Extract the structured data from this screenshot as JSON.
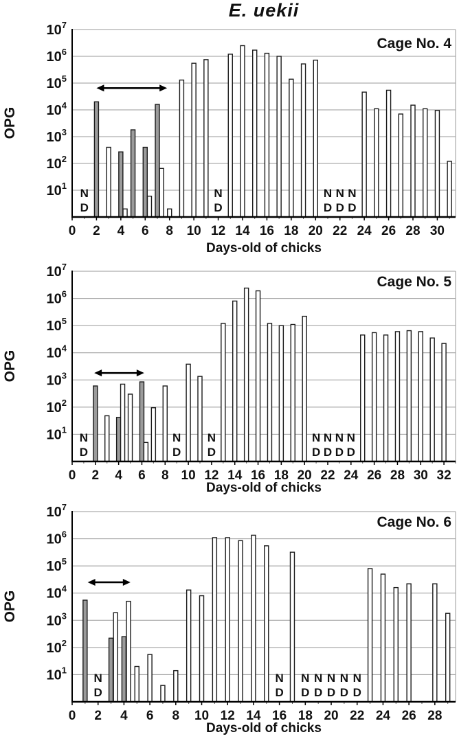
{
  "page": {
    "title": "E. uekii"
  },
  "labels": {
    "nd_line1": "N",
    "nd_line2": "D"
  },
  "colors": {
    "bar_outline": "#1a1a1a",
    "bar_fill": "#ffffff",
    "bar_fill_shaded": "#9b9b9b",
    "grid": "#999999",
    "axis": "#000000",
    "text": "#111111"
  },
  "chart_data": [
    {
      "type": "bar",
      "cage_label": "Cage No. 4",
      "ylabel": "OPG",
      "xlabel": "Days-old of chicks",
      "yscale": "log",
      "ylim": [
        1,
        10000000
      ],
      "ytick_exponents": [
        7,
        6,
        5,
        4,
        3,
        2,
        1
      ],
      "xmax": 31.5,
      "xticks": [
        0,
        2,
        4,
        6,
        8,
        10,
        12,
        14,
        16,
        18,
        20,
        22,
        24,
        26,
        28,
        30
      ],
      "bars": [
        {
          "day": 2,
          "opg": 20000,
          "shaded": true
        },
        {
          "day": 3,
          "opg": 400,
          "shaded": false
        },
        {
          "day": 4,
          "opg": 270,
          "shaded": true
        },
        {
          "day": 4.35,
          "opg": 2,
          "shaded": false
        },
        {
          "day": 5,
          "opg": 1800,
          "shaded": true
        },
        {
          "day": 6,
          "opg": 400,
          "shaded": true
        },
        {
          "day": 6.35,
          "opg": 6,
          "shaded": false
        },
        {
          "day": 7,
          "opg": 16000,
          "shaded": true
        },
        {
          "day": 7.35,
          "opg": 65,
          "shaded": false
        },
        {
          "day": 8,
          "opg": 2,
          "shaded": false
        },
        {
          "day": 9,
          "opg": 130000,
          "shaded": false
        },
        {
          "day": 10,
          "opg": 550000,
          "shaded": false
        },
        {
          "day": 11,
          "opg": 750000,
          "shaded": false
        },
        {
          "day": 13,
          "opg": 1200000,
          "shaded": false
        },
        {
          "day": 14,
          "opg": 2500000,
          "shaded": false
        },
        {
          "day": 15,
          "opg": 1700000,
          "shaded": false
        },
        {
          "day": 16,
          "opg": 1300000,
          "shaded": false
        },
        {
          "day": 17,
          "opg": 1000000,
          "shaded": false
        },
        {
          "day": 18,
          "opg": 140000,
          "shaded": false
        },
        {
          "day": 19,
          "opg": 520000,
          "shaded": false
        },
        {
          "day": 20,
          "opg": 720000,
          "shaded": false
        },
        {
          "day": 24,
          "opg": 46000,
          "shaded": false
        },
        {
          "day": 25,
          "opg": 11000,
          "shaded": false
        },
        {
          "day": 26,
          "opg": 54000,
          "shaded": false
        },
        {
          "day": 27,
          "opg": 7000,
          "shaded": false
        },
        {
          "day": 28,
          "opg": 15000,
          "shaded": false
        },
        {
          "day": 29,
          "opg": 11000,
          "shaded": false
        },
        {
          "day": 30,
          "opg": 9500,
          "shaded": false
        },
        {
          "day": 31,
          "opg": 120,
          "shaded": false
        }
      ],
      "nd_days": [
        1,
        12,
        21,
        22,
        23
      ],
      "arrow": {
        "from_day": 2,
        "to_day": 7.8,
        "at_opg": 65000
      }
    },
    {
      "type": "bar",
      "cage_label": "Cage No. 5",
      "ylabel": "OPG",
      "xlabel": "Days-old of chicks",
      "yscale": "log",
      "ylim": [
        1,
        10000000
      ],
      "ytick_exponents": [
        7,
        6,
        5,
        4,
        3,
        2,
        1
      ],
      "xmax": 33,
      "xticks": [
        0,
        2,
        4,
        6,
        8,
        10,
        12,
        14,
        16,
        18,
        20,
        22,
        24,
        26,
        28,
        30,
        32
      ],
      "bars": [
        {
          "day": 2,
          "opg": 600,
          "shaded": true
        },
        {
          "day": 3,
          "opg": 48,
          "shaded": false
        },
        {
          "day": 4,
          "opg": 42,
          "shaded": true
        },
        {
          "day": 4.35,
          "opg": 700,
          "shaded": false
        },
        {
          "day": 5,
          "opg": 300,
          "shaded": false
        },
        {
          "day": 6,
          "opg": 850,
          "shaded": true
        },
        {
          "day": 6.35,
          "opg": 5,
          "shaded": false
        },
        {
          "day": 7,
          "opg": 95,
          "shaded": false
        },
        {
          "day": 8,
          "opg": 600,
          "shaded": false
        },
        {
          "day": 10,
          "opg": 3800,
          "shaded": false
        },
        {
          "day": 11,
          "opg": 1350,
          "shaded": false
        },
        {
          "day": 13,
          "opg": 120000,
          "shaded": false
        },
        {
          "day": 14,
          "opg": 800000,
          "shaded": false
        },
        {
          "day": 15,
          "opg": 2400000,
          "shaded": false
        },
        {
          "day": 16,
          "opg": 1900000,
          "shaded": false
        },
        {
          "day": 17,
          "opg": 120000,
          "shaded": false
        },
        {
          "day": 18,
          "opg": 100000,
          "shaded": false
        },
        {
          "day": 19,
          "opg": 110000,
          "shaded": false
        },
        {
          "day": 20,
          "opg": 220000,
          "shaded": false
        },
        {
          "day": 25,
          "opg": 45000,
          "shaded": false
        },
        {
          "day": 26,
          "opg": 55000,
          "shaded": false
        },
        {
          "day": 27,
          "opg": 45000,
          "shaded": false
        },
        {
          "day": 28,
          "opg": 60000,
          "shaded": false
        },
        {
          "day": 29,
          "opg": 65000,
          "shaded": false
        },
        {
          "day": 30,
          "opg": 60000,
          "shaded": false
        },
        {
          "day": 31,
          "opg": 35000,
          "shaded": false
        },
        {
          "day": 32,
          "opg": 22000,
          "shaded": false
        }
      ],
      "nd_days": [
        1,
        9,
        12,
        21,
        22,
        23,
        24
      ],
      "arrow": {
        "from_day": 1.9,
        "to_day": 6.2,
        "at_opg": 1800
      }
    },
    {
      "type": "bar",
      "cage_label": "Cage No. 6",
      "ylabel": "OPG",
      "xlabel": "Days-old of chicks",
      "yscale": "log",
      "ylim": [
        1,
        10000000
      ],
      "ytick_exponents": [
        7,
        6,
        5,
        4,
        3,
        2,
        1
      ],
      "xmax": 29.6,
      "xticks": [
        0,
        2,
        4,
        6,
        8,
        10,
        12,
        14,
        16,
        18,
        20,
        22,
        24,
        26,
        28
      ],
      "bars": [
        {
          "day": 1,
          "opg": 5500,
          "shaded": true
        },
        {
          "day": 3,
          "opg": 220,
          "shaded": true
        },
        {
          "day": 3.35,
          "opg": 1900,
          "shaded": false
        },
        {
          "day": 4,
          "opg": 250,
          "shaded": true
        },
        {
          "day": 4.35,
          "opg": 5000,
          "shaded": false
        },
        {
          "day": 5,
          "opg": 20,
          "shaded": false
        },
        {
          "day": 6,
          "opg": 55,
          "shaded": false
        },
        {
          "day": 7,
          "opg": 4,
          "shaded": false
        },
        {
          "day": 8,
          "opg": 14,
          "shaded": false
        },
        {
          "day": 9,
          "opg": 13000,
          "shaded": false
        },
        {
          "day": 10,
          "opg": 8000,
          "shaded": false
        },
        {
          "day": 11,
          "opg": 1100000,
          "shaded": false
        },
        {
          "day": 12,
          "opg": 1100000,
          "shaded": false
        },
        {
          "day": 13,
          "opg": 850000,
          "shaded": false
        },
        {
          "day": 14,
          "opg": 1350000,
          "shaded": false
        },
        {
          "day": 15,
          "opg": 550000,
          "shaded": false
        },
        {
          "day": 17,
          "opg": 320000,
          "shaded": false
        },
        {
          "day": 23,
          "opg": 80000,
          "shaded": false
        },
        {
          "day": 24,
          "opg": 50000,
          "shaded": false
        },
        {
          "day": 25,
          "opg": 16000,
          "shaded": false
        },
        {
          "day": 26,
          "opg": 22000,
          "shaded": false
        },
        {
          "day": 28,
          "opg": 22000,
          "shaded": false
        },
        {
          "day": 29,
          "opg": 1800,
          "shaded": false
        }
      ],
      "nd_days": [
        2,
        16,
        18,
        19,
        20,
        21,
        22
      ],
      "arrow": {
        "from_day": 1.2,
        "to_day": 4.5,
        "at_opg": 25000
      }
    }
  ]
}
